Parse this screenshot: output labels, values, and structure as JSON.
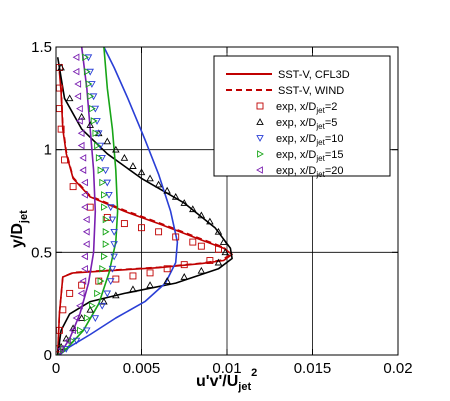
{
  "chart_data": {
    "type": "scatter",
    "title": "",
    "xlabel": {
      "main": "u'v'/U",
      "sub": "jet",
      "sup": "2"
    },
    "ylabel": {
      "main": "y/D",
      "sub": "jet"
    },
    "xlim": [
      0,
      0.02
    ],
    "ylim": [
      0,
      1.5
    ],
    "xticks": [
      0,
      0.005,
      0.01,
      0.015,
      0.02
    ],
    "xtick_labels": [
      "0",
      "0.005",
      "0.01",
      "0.015",
      "0.02"
    ],
    "yticks": [
      0,
      0.5,
      1,
      1.5
    ],
    "ytick_labels": [
      "0",
      "0.5",
      "1",
      "1.5"
    ],
    "grid": true,
    "legend_position": "top-right",
    "legend": [
      {
        "label": "SST-V, CFL3D",
        "kind": "line",
        "style": "solid",
        "color": "#c00000"
      },
      {
        "label": "SST-V, WIND",
        "kind": "line",
        "style": "dashed",
        "color": "#c00000"
      },
      {
        "label_main": "exp, x/D",
        "sub": "jet",
        "label_tail": "=2",
        "kind": "marker",
        "marker": "square",
        "color": "#c00000"
      },
      {
        "label_main": "exp, x/D",
        "sub": "jet",
        "label_tail": "=5",
        "kind": "marker",
        "marker": "triangle-up",
        "color": "#000000"
      },
      {
        "label_main": "exp, x/D",
        "sub": "jet",
        "label_tail": "=10",
        "kind": "marker",
        "marker": "triangle-down",
        "color": "#2a3fd6"
      },
      {
        "label_main": "exp, x/D",
        "sub": "jet",
        "label_tail": "=15",
        "kind": "marker",
        "marker": "triangle-right",
        "color": "#17a517"
      },
      {
        "label_main": "exp, x/D",
        "sub": "jet",
        "label_tail": "=20",
        "kind": "marker",
        "marker": "triangle-left",
        "color": "#7a1fb0"
      }
    ],
    "series": [
      {
        "name": "SST-V, CFL3D x/Djet=2",
        "kind": "line",
        "color": "#c00000",
        "points": [
          [
            0.0002,
            1.38
          ],
          [
            0.0003,
            1.28
          ],
          [
            0.0004,
            1.1
          ],
          [
            0.0006,
            0.98
          ],
          [
            0.001,
            0.86
          ],
          [
            0.002,
            0.77
          ],
          [
            0.004,
            0.7
          ],
          [
            0.006,
            0.64
          ],
          [
            0.0085,
            0.56
          ],
          [
            0.0098,
            0.52
          ],
          [
            0.0103,
            0.49
          ],
          [
            0.0098,
            0.46
          ],
          [
            0.0085,
            0.445
          ],
          [
            0.006,
            0.425
          ],
          [
            0.003,
            0.41
          ],
          [
            0.001,
            0.4
          ],
          [
            0.0004,
            0.38
          ],
          [
            0.0002,
            0.2
          ],
          [
            0.0001,
            0
          ]
        ]
      },
      {
        "name": "SST-V, WIND x/Djet=2",
        "kind": "line",
        "style": "dashed",
        "color": "#c00000",
        "points": [
          [
            0.0002,
            1.4
          ],
          [
            0.0003,
            1.3
          ],
          [
            0.0004,
            1.12
          ],
          [
            0.0006,
            0.99
          ],
          [
            0.001,
            0.865
          ],
          [
            0.002,
            0.775
          ],
          [
            0.004,
            0.705
          ],
          [
            0.006,
            0.645
          ],
          [
            0.0085,
            0.565
          ],
          [
            0.0098,
            0.525
          ],
          [
            0.0102,
            0.49
          ],
          [
            0.0097,
            0.462
          ],
          [
            0.0085,
            0.447
          ],
          [
            0.006,
            0.427
          ],
          [
            0.003,
            0.412
          ],
          [
            0.001,
            0.402
          ],
          [
            0.0004,
            0.38
          ],
          [
            0.0002,
            0.2
          ],
          [
            0.0001,
            0
          ]
        ]
      },
      {
        "name": "SST-V x/Djet=5",
        "kind": "line",
        "color": "#000000",
        "points": [
          [
            0.0001,
            1.45
          ],
          [
            0.0005,
            1.25
          ],
          [
            0.0015,
            1.1
          ],
          [
            0.003,
            0.98
          ],
          [
            0.005,
            0.86
          ],
          [
            0.0075,
            0.74
          ],
          [
            0.0093,
            0.62
          ],
          [
            0.0102,
            0.52
          ],
          [
            0.0103,
            0.47
          ],
          [
            0.0095,
            0.42
          ],
          [
            0.007,
            0.35
          ],
          [
            0.004,
            0.3
          ],
          [
            0.002,
            0.26
          ],
          [
            0.0008,
            0.2
          ],
          [
            0.0003,
            0.12
          ],
          [
            0.0001,
            0
          ]
        ]
      },
      {
        "name": "SST-V x/Djet=10",
        "kind": "line",
        "color": "#2a3fd6",
        "points": [
          [
            0.0028,
            1.5
          ],
          [
            0.0034,
            1.4
          ],
          [
            0.0042,
            1.25
          ],
          [
            0.0052,
            1.05
          ],
          [
            0.006,
            0.88
          ],
          [
            0.0067,
            0.7
          ],
          [
            0.0071,
            0.55
          ],
          [
            0.007,
            0.45
          ],
          [
            0.0064,
            0.35
          ],
          [
            0.0052,
            0.26
          ],
          [
            0.0035,
            0.18
          ],
          [
            0.002,
            0.1
          ],
          [
            0.0008,
            0.04
          ],
          [
            0.0002,
            0
          ]
        ]
      },
      {
        "name": "SST-V x/Djet=15",
        "kind": "line",
        "color": "#17a517",
        "points": [
          [
            0.0028,
            1.5
          ],
          [
            0.003,
            1.3
          ],
          [
            0.0033,
            1.1
          ],
          [
            0.0035,
            0.9
          ],
          [
            0.0036,
            0.7
          ],
          [
            0.0035,
            0.55
          ],
          [
            0.0031,
            0.4
          ],
          [
            0.0025,
            0.25
          ],
          [
            0.0016,
            0.12
          ],
          [
            0.0005,
            0.02
          ],
          [
            0.0001,
            0
          ]
        ]
      },
      {
        "name": "SST-V x/Djet=20",
        "kind": "line",
        "color": "#7a1fb0",
        "points": [
          [
            0.0015,
            1.5
          ],
          [
            0.0018,
            1.3
          ],
          [
            0.002,
            1.1
          ],
          [
            0.0022,
            0.9
          ],
          [
            0.0023,
            0.7
          ],
          [
            0.0022,
            0.5
          ],
          [
            0.0019,
            0.35
          ],
          [
            0.0014,
            0.2
          ],
          [
            0.0008,
            0.08
          ],
          [
            0.0002,
            0
          ]
        ]
      },
      {
        "name": "exp, x/Djet=2",
        "kind": "marker",
        "marker": "square",
        "color": "#c00000",
        "points": [
          [
            0.0002,
            1.4
          ],
          [
            0.0002,
            1.3
          ],
          [
            0.0002,
            1.2
          ],
          [
            0.0003,
            1.1
          ],
          [
            0.0005,
            0.95
          ],
          [
            0.001,
            0.82
          ],
          [
            0.002,
            0.72
          ],
          [
            0.003,
            0.67
          ],
          [
            0.004,
            0.64
          ],
          [
            0.005,
            0.62
          ],
          [
            0.006,
            0.6
          ],
          [
            0.007,
            0.575
          ],
          [
            0.008,
            0.55
          ],
          [
            0.0095,
            0.515
          ],
          [
            0.0085,
            0.53
          ],
          [
            0.009,
            0.46
          ],
          [
            0.0075,
            0.44
          ],
          [
            0.0065,
            0.42
          ],
          [
            0.0055,
            0.4
          ],
          [
            0.0045,
            0.385
          ],
          [
            0.0035,
            0.37
          ],
          [
            0.0025,
            0.36
          ],
          [
            0.0015,
            0.34
          ],
          [
            0.0008,
            0.3
          ],
          [
            0.0004,
            0.22
          ],
          [
            0.0002,
            0.12
          ],
          [
            0.0001,
            0.03
          ]
        ]
      },
      {
        "name": "exp, x/Djet=5",
        "kind": "marker",
        "marker": "triangle-up",
        "color": "#000000",
        "points": [
          [
            0.0003,
            1.4
          ],
          [
            0.0008,
            1.25
          ],
          [
            0.0015,
            1.16
          ],
          [
            0.002,
            1.12
          ],
          [
            0.0025,
            1.08
          ],
          [
            0.003,
            1.04
          ],
          [
            0.0035,
            1.0
          ],
          [
            0.004,
            0.96
          ],
          [
            0.0045,
            0.92
          ],
          [
            0.005,
            0.89
          ],
          [
            0.0055,
            0.86
          ],
          [
            0.006,
            0.83
          ],
          [
            0.0065,
            0.8
          ],
          [
            0.007,
            0.77
          ],
          [
            0.0075,
            0.74
          ],
          [
            0.008,
            0.71
          ],
          [
            0.0085,
            0.68
          ],
          [
            0.009,
            0.65
          ],
          [
            0.0095,
            0.6
          ],
          [
            0.0098,
            0.55
          ],
          [
            0.0099,
            0.5
          ],
          [
            0.0095,
            0.45
          ],
          [
            0.0085,
            0.41
          ],
          [
            0.0075,
            0.38
          ],
          [
            0.0065,
            0.36
          ],
          [
            0.0055,
            0.34
          ],
          [
            0.0045,
            0.32
          ],
          [
            0.0035,
            0.29
          ],
          [
            0.0028,
            0.26
          ],
          [
            0.002,
            0.22
          ],
          [
            0.0015,
            0.18
          ],
          [
            0.001,
            0.13
          ],
          [
            0.0006,
            0.08
          ],
          [
            0.0003,
            0.04
          ]
        ]
      },
      {
        "name": "exp, x/Djet=10",
        "kind": "marker",
        "marker": "triangle-down",
        "color": "#2a3fd6",
        "points": [
          [
            0.0019,
            1.45
          ],
          [
            0.002,
            1.38
          ],
          [
            0.0021,
            1.32
          ],
          [
            0.0022,
            1.26
          ],
          [
            0.0023,
            1.2
          ],
          [
            0.0024,
            1.14
          ],
          [
            0.0025,
            1.08
          ],
          [
            0.0026,
            1.02
          ],
          [
            0.0027,
            0.96
          ],
          [
            0.0029,
            0.9
          ],
          [
            0.003,
            0.84
          ],
          [
            0.0031,
            0.78
          ],
          [
            0.0032,
            0.72
          ],
          [
            0.0033,
            0.66
          ],
          [
            0.0034,
            0.6
          ],
          [
            0.0034,
            0.54
          ],
          [
            0.0034,
            0.48
          ],
          [
            0.0033,
            0.42
          ],
          [
            0.0032,
            0.36
          ],
          [
            0.003,
            0.3
          ],
          [
            0.0027,
            0.24
          ],
          [
            0.0023,
            0.18
          ],
          [
            0.0018,
            0.12
          ],
          [
            0.0012,
            0.07
          ],
          [
            0.0006,
            0.03
          ]
        ]
      },
      {
        "name": "exp, x/Djet=15",
        "kind": "marker",
        "marker": "triangle-right",
        "color": "#17a517",
        "points": [
          [
            0.0017,
            1.45
          ],
          [
            0.0018,
            1.38
          ],
          [
            0.0019,
            1.32
          ],
          [
            0.002,
            1.26
          ],
          [
            0.0021,
            1.2
          ],
          [
            0.0022,
            1.14
          ],
          [
            0.0023,
            1.08
          ],
          [
            0.0024,
            1.02
          ],
          [
            0.0025,
            0.96
          ],
          [
            0.0026,
            0.9
          ],
          [
            0.0027,
            0.84
          ],
          [
            0.0028,
            0.78
          ],
          [
            0.0028,
            0.72
          ],
          [
            0.0029,
            0.66
          ],
          [
            0.0029,
            0.6
          ],
          [
            0.0029,
            0.54
          ],
          [
            0.0028,
            0.48
          ],
          [
            0.0027,
            0.42
          ],
          [
            0.0026,
            0.36
          ],
          [
            0.0024,
            0.3
          ],
          [
            0.0021,
            0.24
          ],
          [
            0.0018,
            0.18
          ],
          [
            0.0014,
            0.12
          ],
          [
            0.0009,
            0.07
          ],
          [
            0.0004,
            0.03
          ]
        ]
      },
      {
        "name": "exp, x/Djet=20",
        "kind": "marker",
        "marker": "triangle-left",
        "color": "#7a1fb0",
        "points": [
          [
            0.0012,
            1.45
          ],
          [
            0.0012,
            1.38
          ],
          [
            0.0013,
            1.32
          ],
          [
            0.0013,
            1.26
          ],
          [
            0.0014,
            1.2
          ],
          [
            0.0014,
            1.14
          ],
          [
            0.0015,
            1.08
          ],
          [
            0.0015,
            1.02
          ],
          [
            0.0016,
            0.96
          ],
          [
            0.0016,
            0.9
          ],
          [
            0.0017,
            0.84
          ],
          [
            0.0017,
            0.78
          ],
          [
            0.0017,
            0.72
          ],
          [
            0.0018,
            0.66
          ],
          [
            0.0018,
            0.6
          ],
          [
            0.0018,
            0.54
          ],
          [
            0.0017,
            0.48
          ],
          [
            0.0017,
            0.42
          ],
          [
            0.0016,
            0.36
          ],
          [
            0.0015,
            0.3
          ],
          [
            0.0014,
            0.24
          ],
          [
            0.0012,
            0.18
          ],
          [
            0.001,
            0.12
          ],
          [
            0.0007,
            0.07
          ],
          [
            0.0003,
            0.03
          ]
        ]
      }
    ]
  }
}
